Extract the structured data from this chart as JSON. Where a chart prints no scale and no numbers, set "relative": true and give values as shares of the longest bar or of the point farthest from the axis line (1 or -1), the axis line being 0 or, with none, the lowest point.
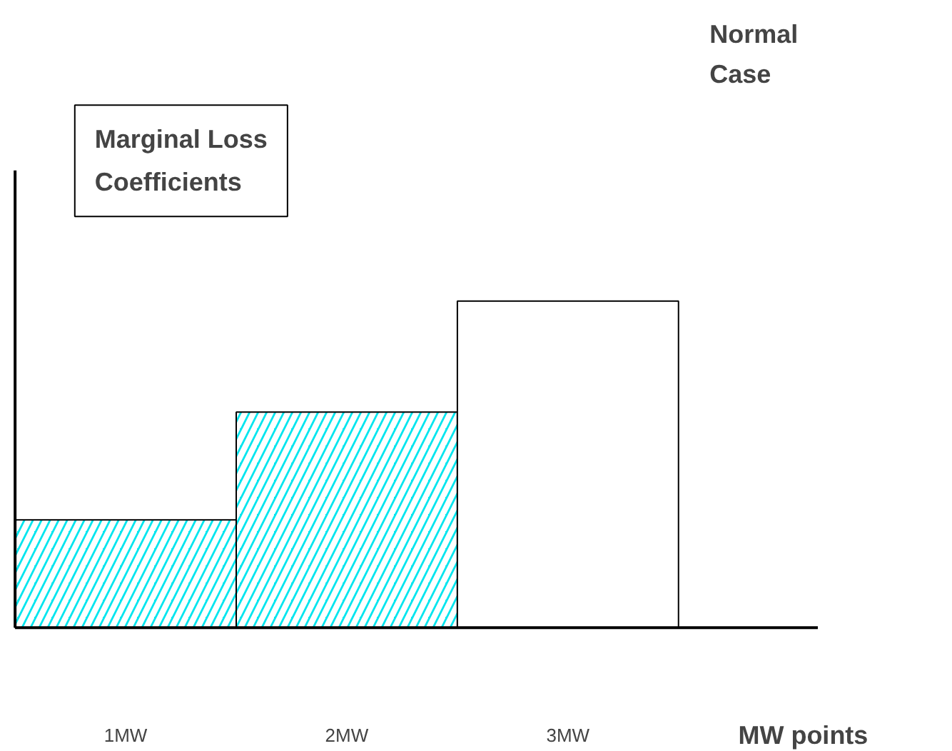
{
  "chart_data": {
    "type": "bar",
    "title": "Marginal Loss Coefficients",
    "annotations": [
      "Normal Case"
    ],
    "xlabel": "MW points",
    "categories": [
      "1MW",
      "2MW",
      "3MW"
    ],
    "values": [
      0.33,
      0.66,
      1
    ],
    "colors": [
      "#00e5ee",
      "#00e5ee",
      "#ffffff"
    ],
    "relative": true,
    "grid": false
  }
}
